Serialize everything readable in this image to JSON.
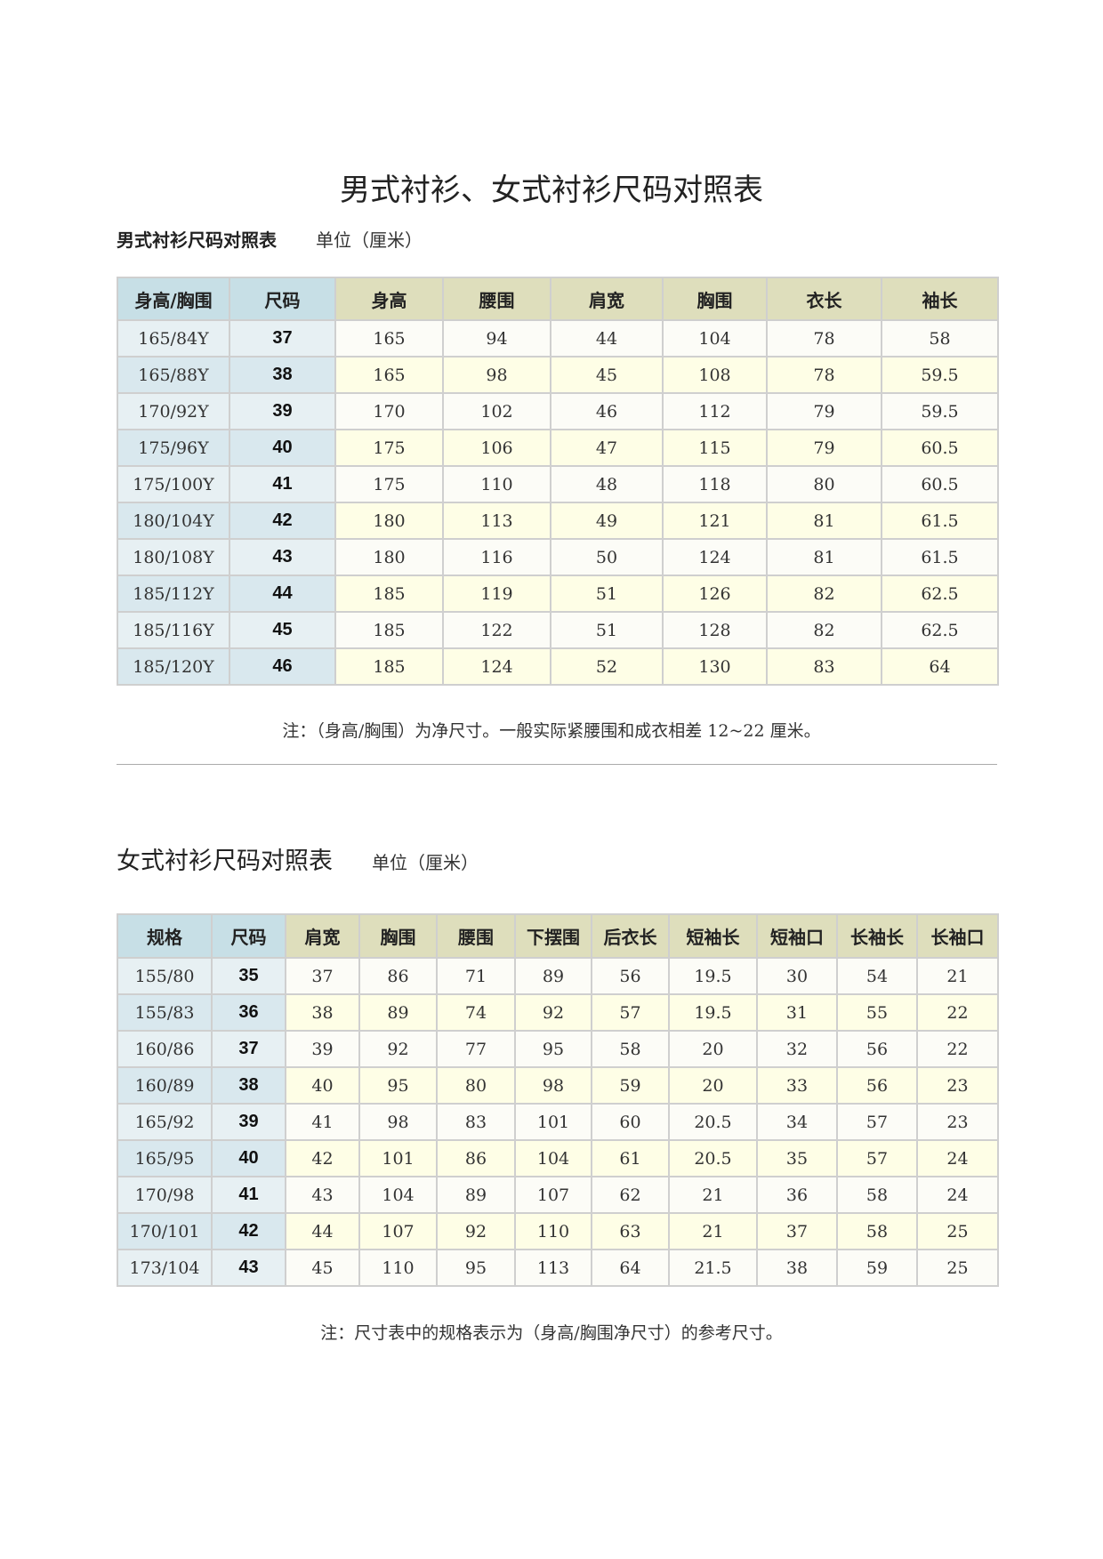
{
  "title": "男式衬衫、女式衬衫尺码对照表",
  "men": {
    "heading": "男式衬衫尺码对照表",
    "unit": "单位（厘米）",
    "headers": [
      "身高/胸围",
      "尺码",
      "身高",
      "腰围",
      "肩宽",
      "胸围",
      "衣长",
      "袖长"
    ],
    "rows": [
      [
        "165/84Y",
        "37",
        "165",
        "94",
        "44",
        "104",
        "78",
        "58"
      ],
      [
        "165/88Y",
        "38",
        "165",
        "98",
        "45",
        "108",
        "78",
        "59.5"
      ],
      [
        "170/92Y",
        "39",
        "170",
        "102",
        "46",
        "112",
        "79",
        "59.5"
      ],
      [
        "175/96Y",
        "40",
        "175",
        "106",
        "47",
        "115",
        "79",
        "60.5"
      ],
      [
        "175/100Y",
        "41",
        "175",
        "110",
        "48",
        "118",
        "80",
        "60.5"
      ],
      [
        "180/104Y",
        "42",
        "180",
        "113",
        "49",
        "121",
        "81",
        "61.5"
      ],
      [
        "180/108Y",
        "43",
        "180",
        "116",
        "50",
        "124",
        "81",
        "61.5"
      ],
      [
        "185/112Y",
        "44",
        "185",
        "119",
        "51",
        "126",
        "82",
        "62.5"
      ],
      [
        "185/116Y",
        "45",
        "185",
        "122",
        "51",
        "128",
        "82",
        "62.5"
      ],
      [
        "185/120Y",
        "46",
        "185",
        "124",
        "52",
        "130",
        "83",
        "64"
      ]
    ],
    "note": "注：（身高/胸围）为净尺寸。一般实际紧腰围和成衣相差 12~22 厘米。"
  },
  "women": {
    "heading": "女式衬衫尺码对照表",
    "unit": "单位（厘米）",
    "headers": [
      "规格",
      "尺码",
      "肩宽",
      "胸围",
      "腰围",
      "下摆围",
      "后衣长",
      "短袖长",
      "短袖口",
      "长袖长",
      "长袖口"
    ],
    "rows": [
      [
        "155/80",
        "35",
        "37",
        "86",
        "71",
        "89",
        "56",
        "19.5",
        "30",
        "54",
        "21"
      ],
      [
        "155/83",
        "36",
        "38",
        "89",
        "74",
        "92",
        "57",
        "19.5",
        "31",
        "55",
        "22"
      ],
      [
        "160/86",
        "37",
        "39",
        "92",
        "77",
        "95",
        "58",
        "20",
        "32",
        "56",
        "22"
      ],
      [
        "160/89",
        "38",
        "40",
        "95",
        "80",
        "98",
        "59",
        "20",
        "33",
        "56",
        "23"
      ],
      [
        "165/92",
        "39",
        "41",
        "98",
        "83",
        "101",
        "60",
        "20.5",
        "34",
        "57",
        "23"
      ],
      [
        "165/95",
        "40",
        "42",
        "101",
        "86",
        "104",
        "61",
        "20.5",
        "35",
        "57",
        "24"
      ],
      [
        "170/98",
        "41",
        "43",
        "104",
        "89",
        "107",
        "62",
        "21",
        "36",
        "58",
        "24"
      ],
      [
        "170/101",
        "42",
        "44",
        "107",
        "92",
        "110",
        "63",
        "21",
        "37",
        "58",
        "25"
      ],
      [
        "173/104",
        "43",
        "45",
        "110",
        "95",
        "113",
        "64",
        "21.5",
        "38",
        "59",
        "25"
      ]
    ],
    "note": "注：尺寸表中的规格表示为（身高/胸围净尺寸）的参考尺寸。"
  },
  "colors": {
    "header_blue": "#c7dfe6",
    "header_olive": "#dedebc",
    "row_alt": "#fefee6"
  }
}
